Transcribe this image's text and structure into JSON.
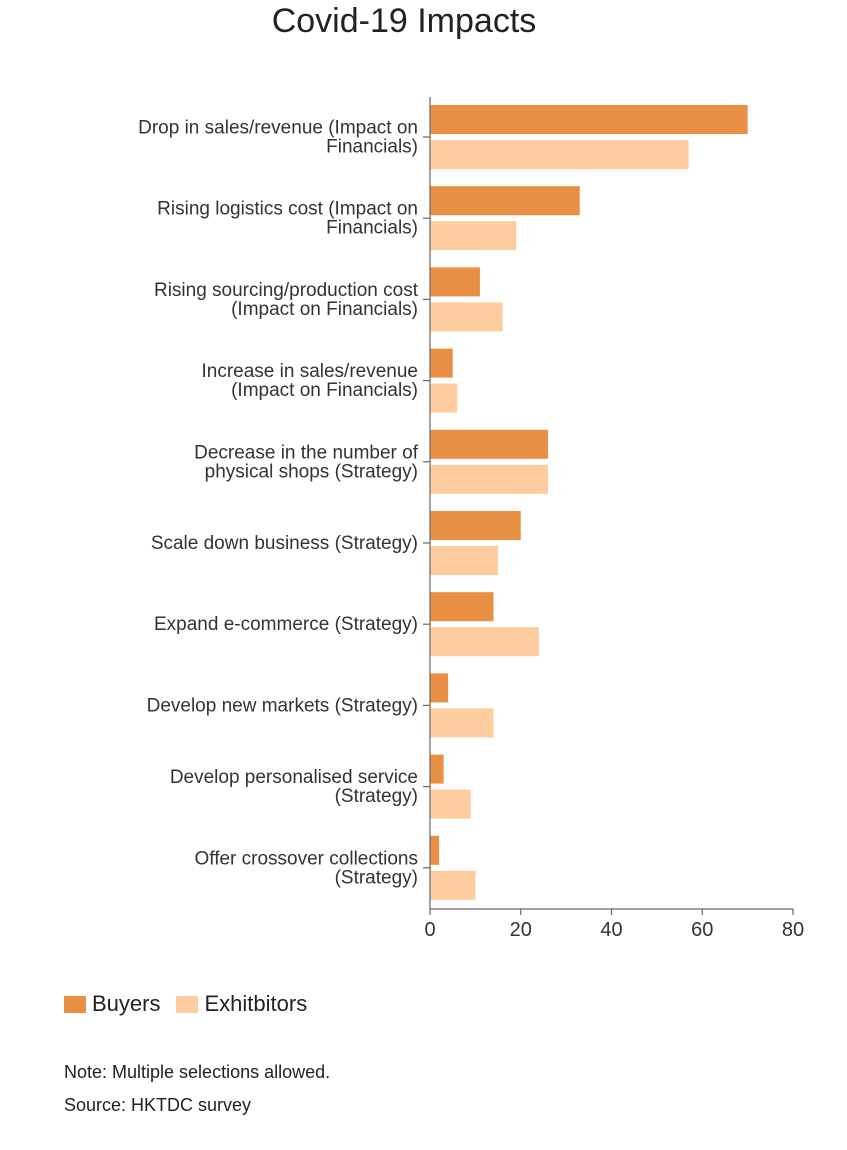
{
  "chart_data": {
    "type": "bar",
    "orientation": "horizontal",
    "title": "Covid-19 Impacts",
    "categories": [
      [
        "Drop in sales/revenue (Impact on",
        "Financials)"
      ],
      [
        "Rising logistics cost (Impact on",
        "Financials)"
      ],
      [
        "Rising sourcing/production cost",
        "(Impact on Financials)"
      ],
      [
        "Increase in sales/revenue",
        "(Impact on Financials)"
      ],
      [
        "Decrease in the number of",
        "physical shops (Strategy)"
      ],
      [
        "Scale down business (Strategy)"
      ],
      [
        "Expand e-commerce (Strategy)"
      ],
      [
        "Develop new markets (Strategy)"
      ],
      [
        "Develop personalised service",
        "(Strategy)"
      ],
      [
        "Offer crossover collections",
        "(Strategy)"
      ]
    ],
    "series": [
      {
        "name": "Buyers",
        "color": "#E98F43",
        "values": [
          70,
          33,
          11,
          5,
          26,
          20,
          14,
          4,
          3,
          2
        ]
      },
      {
        "name": "Exhitbitors",
        "color": "#FFCCA0",
        "values": [
          57,
          19,
          16,
          6,
          26,
          15,
          24,
          14,
          9,
          10
        ]
      }
    ],
    "xlim": [
      0,
      80
    ],
    "xticks": [
      "0",
      "20",
      "40",
      "60",
      "80"
    ],
    "xlabel": "",
    "ylabel": "",
    "grid": false,
    "legend_position": "bottom-left"
  },
  "notes": {
    "note": "Note: Multiple selections allowed.",
    "source": "Source: HKTDC survey"
  }
}
